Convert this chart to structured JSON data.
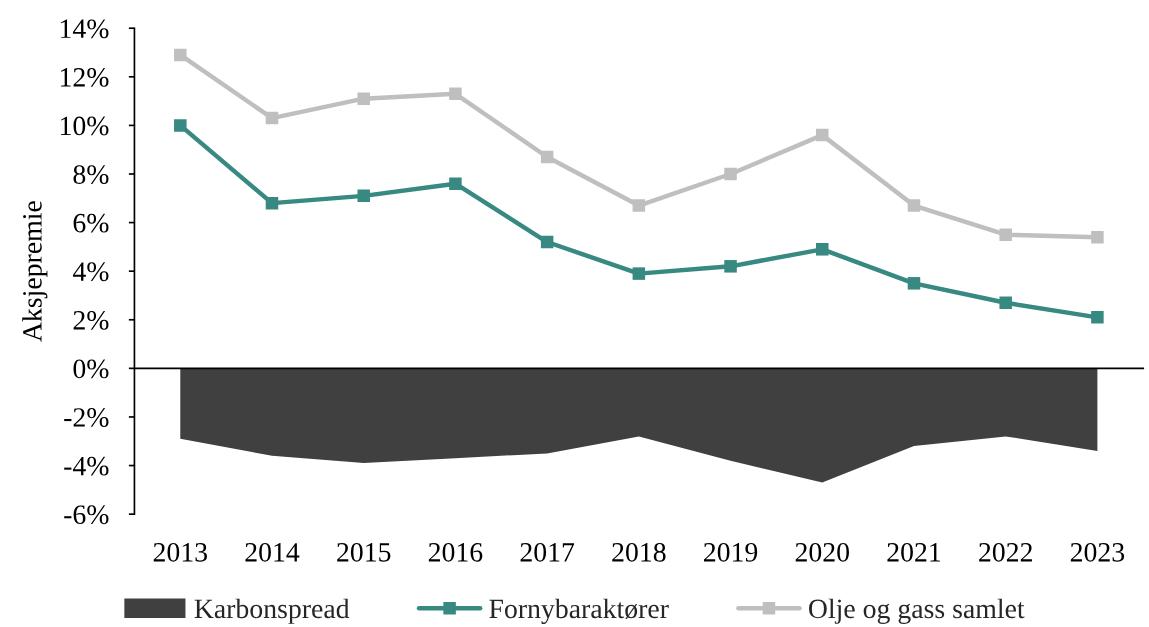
{
  "chart_data": {
    "type": "line",
    "ylabel": "Aksjepremie",
    "categories": [
      "2013",
      "2014",
      "2015",
      "2016",
      "2017",
      "2018",
      "2019",
      "2020",
      "2021",
      "2022",
      "2023"
    ],
    "series": [
      {
        "name": "Karbonspread",
        "type": "area",
        "color": "#404040",
        "values": [
          -2.9,
          -3.6,
          -3.9,
          -3.7,
          -3.5,
          -2.8,
          -3.8,
          -4.7,
          -3.2,
          -2.8,
          -3.4
        ]
      },
      {
        "name": "Fornybaraktører",
        "color": "#378981",
        "marker": "square",
        "values": [
          10.0,
          6.8,
          7.1,
          7.6,
          5.2,
          3.9,
          4.2,
          4.9,
          3.5,
          2.7,
          2.1
        ]
      },
      {
        "name": "Olje og gass samlet",
        "color": "#bfbfbf",
        "marker": "square",
        "values": [
          12.9,
          10.3,
          11.1,
          11.3,
          8.7,
          6.7,
          8.0,
          9.6,
          6.7,
          5.5,
          5.4
        ]
      }
    ],
    "ylim": [
      -6,
      14
    ],
    "yticks": [
      {
        "value": -6,
        "label": "-6%"
      },
      {
        "value": -4,
        "label": "-4%"
      },
      {
        "value": -2,
        "label": "-2%"
      },
      {
        "value": 0,
        "label": "0%"
      },
      {
        "value": 2,
        "label": "2%"
      },
      {
        "value": 4,
        "label": "4%"
      },
      {
        "value": 6,
        "label": "6%"
      },
      {
        "value": 8,
        "label": "8%"
      },
      {
        "value": 10,
        "label": "10%"
      },
      {
        "value": 12,
        "label": "12%"
      },
      {
        "value": 14,
        "label": "14%"
      }
    ],
    "line_style": "solid",
    "legend": "bottom"
  }
}
